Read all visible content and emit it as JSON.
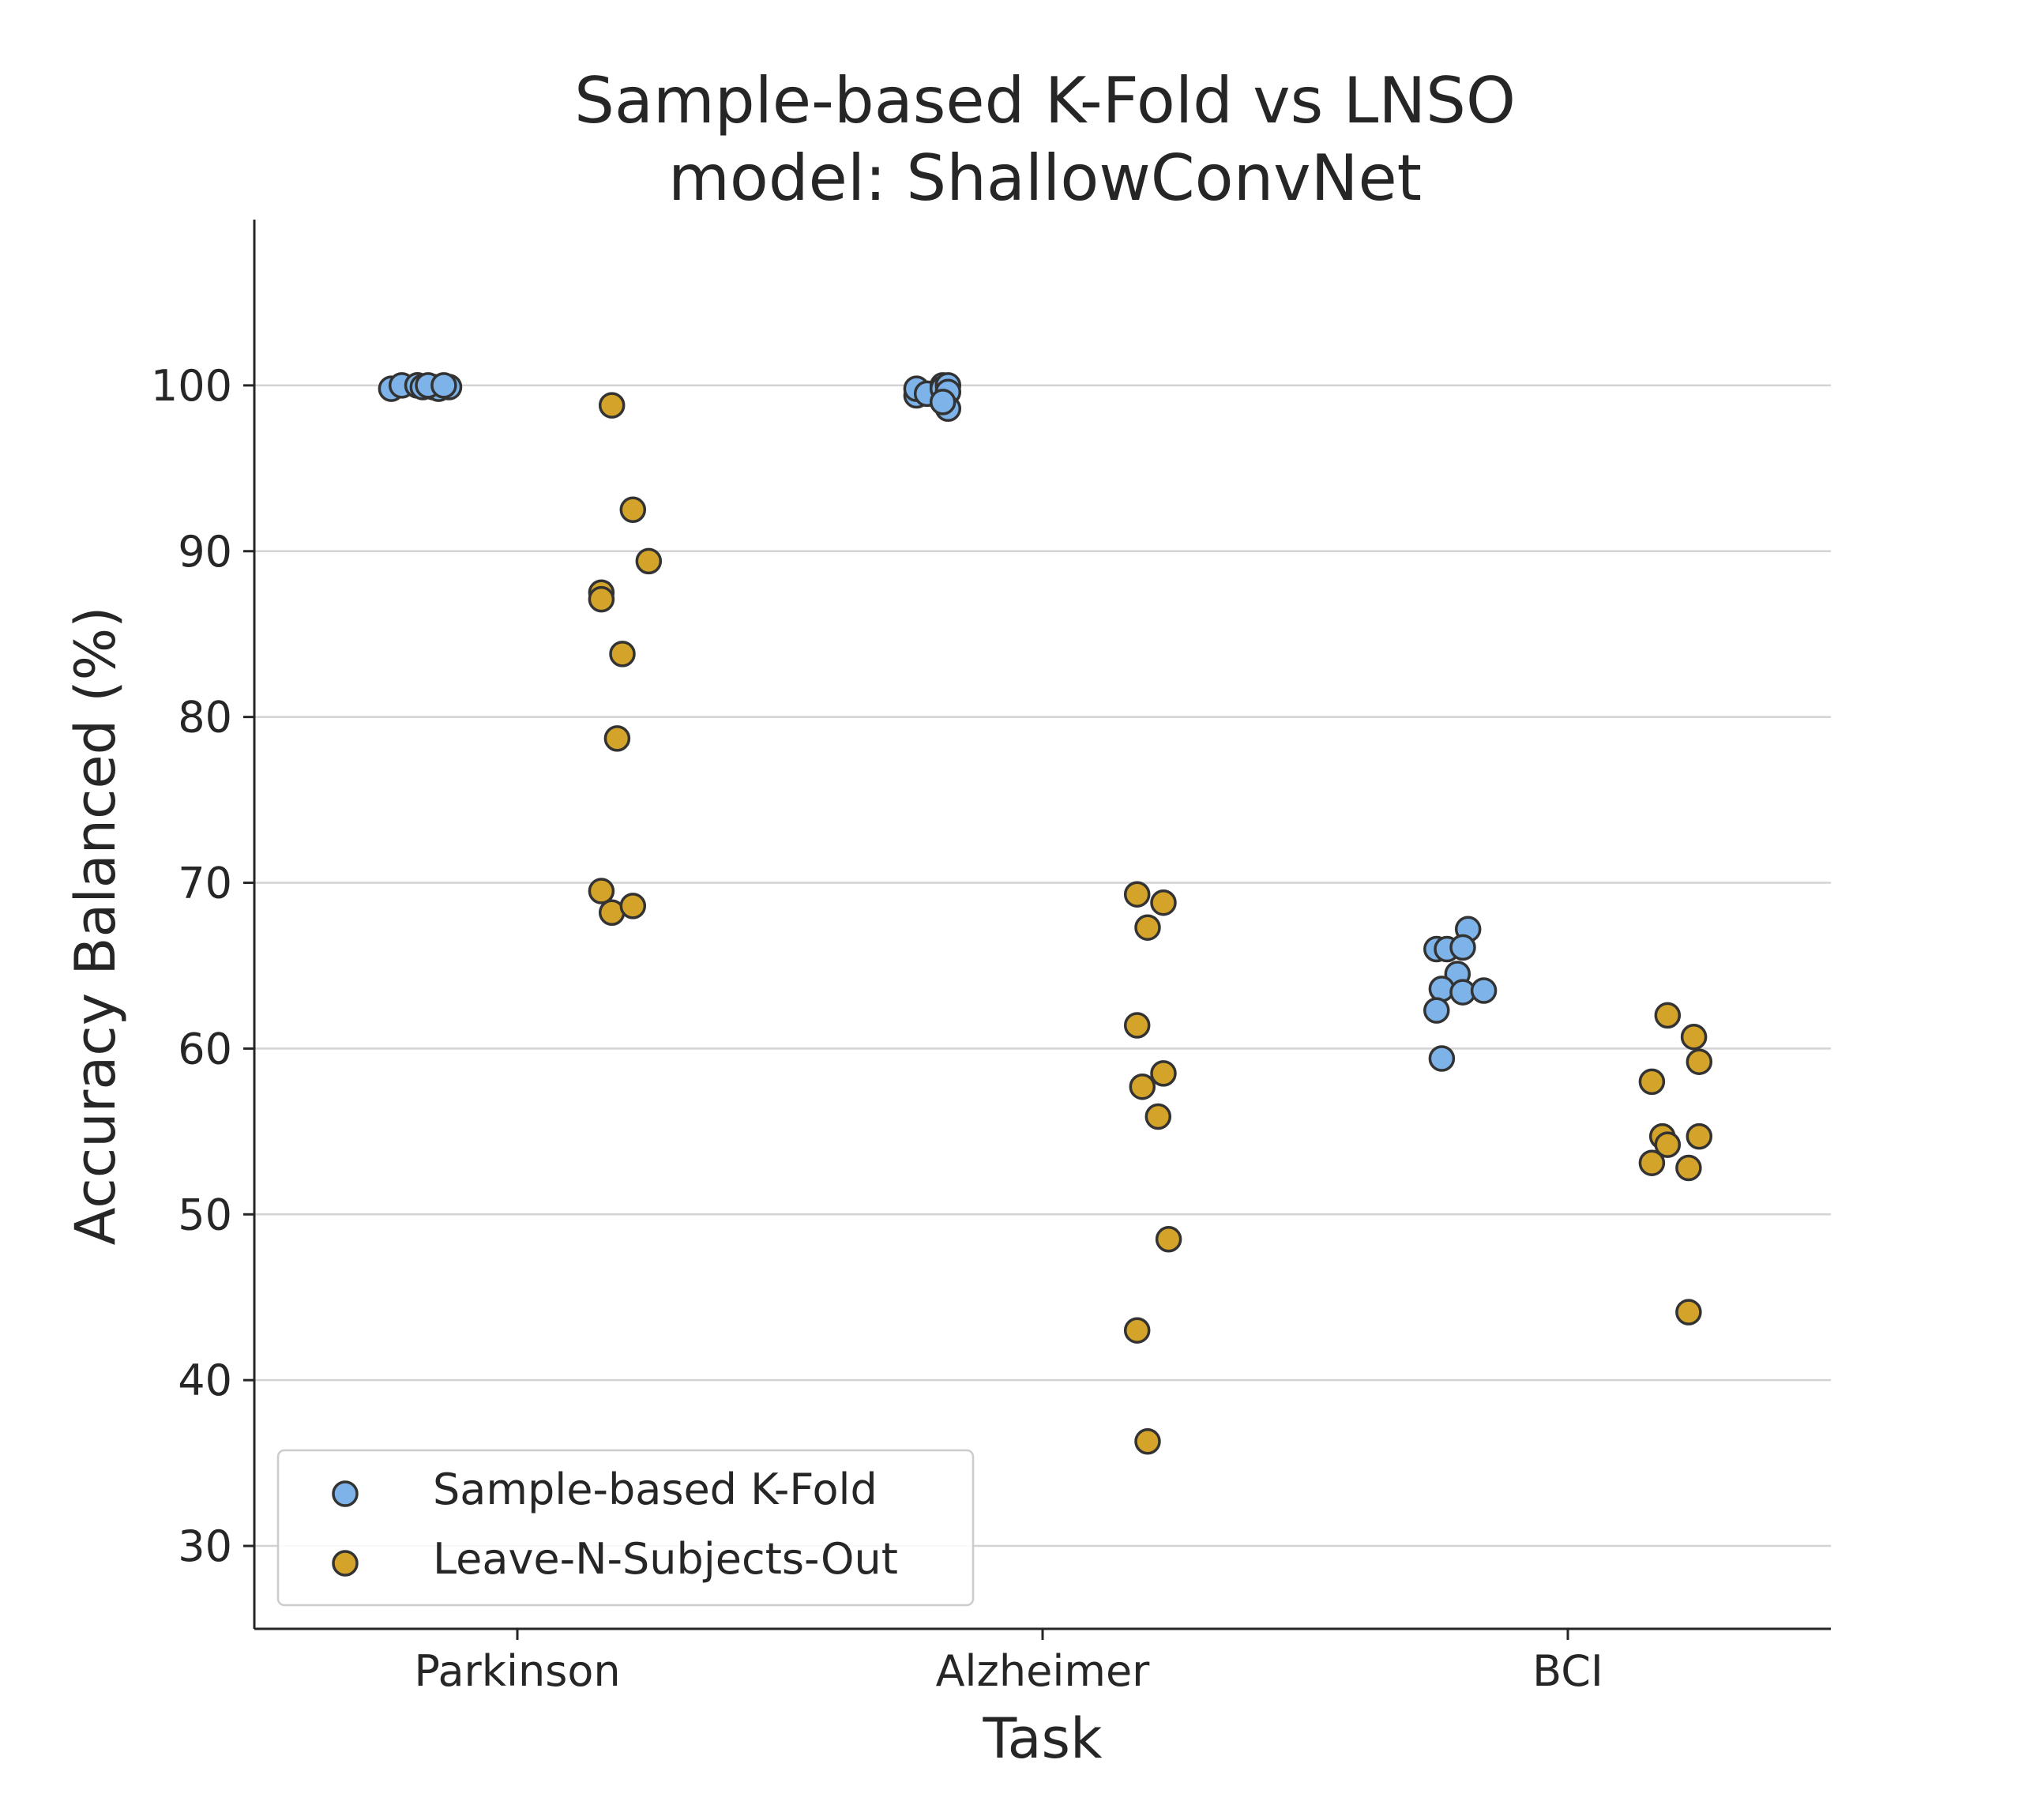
{
  "chart_data": {
    "type": "scatter",
    "title": "Sample-based K-Fold vs LNSO",
    "subtitle": "model: ShallowConvNet",
    "xlabel": "Task",
    "ylabel": "Accuracy Balanced (%)",
    "categories": [
      "Parkinson",
      "Alzheimer",
      "BCI"
    ],
    "ylim": [
      25,
      110
    ],
    "yticks": [
      30,
      40,
      50,
      60,
      70,
      80,
      90,
      100
    ],
    "grid": "horizontal",
    "legend_position": "lower-left",
    "series": [
      {
        "name": "Sample-based K-Fold",
        "color": "#7db3e8",
        "points": [
          {
            "category": "Parkinson",
            "jitter": -0.24,
            "y": 99.8
          },
          {
            "category": "Parkinson",
            "jitter": -0.22,
            "y": 100.0
          },
          {
            "category": "Parkinson",
            "jitter": -0.19,
            "y": 100.0
          },
          {
            "category": "Parkinson",
            "jitter": -0.16,
            "y": 99.9
          },
          {
            "category": "Parkinson",
            "jitter": -0.19,
            "y": 100.0
          },
          {
            "category": "Parkinson",
            "jitter": -0.18,
            "y": 99.9
          },
          {
            "category": "Parkinson",
            "jitter": -0.15,
            "y": 99.8
          },
          {
            "category": "Parkinson",
            "jitter": -0.17,
            "y": 100.0
          },
          {
            "category": "Parkinson",
            "jitter": -0.13,
            "y": 99.9
          },
          {
            "category": "Parkinson",
            "jitter": -0.14,
            "y": 100.0
          },
          {
            "category": "Alzheimer",
            "jitter": -0.24,
            "y": 99.4
          },
          {
            "category": "Alzheimer",
            "jitter": -0.24,
            "y": 99.8
          },
          {
            "category": "Alzheimer",
            "jitter": -0.22,
            "y": 99.5
          },
          {
            "category": "Alzheimer",
            "jitter": -0.19,
            "y": 100.0
          },
          {
            "category": "Alzheimer",
            "jitter": -0.19,
            "y": 99.8
          },
          {
            "category": "Alzheimer",
            "jitter": -0.18,
            "y": 100.0
          },
          {
            "category": "Alzheimer",
            "jitter": -0.18,
            "y": 99.6
          },
          {
            "category": "Alzheimer",
            "jitter": -0.18,
            "y": 98.6
          },
          {
            "category": "Alzheimer",
            "jitter": -0.19,
            "y": 99.0
          },
          {
            "category": "BCI",
            "jitter": -0.25,
            "y": 66.0
          },
          {
            "category": "BCI",
            "jitter": -0.23,
            "y": 66.0
          },
          {
            "category": "BCI",
            "jitter": -0.19,
            "y": 67.2
          },
          {
            "category": "BCI",
            "jitter": -0.2,
            "y": 66.1
          },
          {
            "category": "BCI",
            "jitter": -0.21,
            "y": 64.5
          },
          {
            "category": "BCI",
            "jitter": -0.24,
            "y": 63.6
          },
          {
            "category": "BCI",
            "jitter": -0.2,
            "y": 63.4
          },
          {
            "category": "BCI",
            "jitter": -0.16,
            "y": 63.5
          },
          {
            "category": "BCI",
            "jitter": -0.25,
            "y": 62.3
          },
          {
            "category": "BCI",
            "jitter": -0.24,
            "y": 59.4
          }
        ]
      },
      {
        "name": "Leave-N-Subjects-Out",
        "color": "#d4a32a",
        "points": [
          {
            "category": "Parkinson",
            "jitter": 0.18,
            "y": 98.8
          },
          {
            "category": "Parkinson",
            "jitter": 0.22,
            "y": 92.5
          },
          {
            "category": "Parkinson",
            "jitter": 0.25,
            "y": 89.4
          },
          {
            "category": "Parkinson",
            "jitter": 0.16,
            "y": 87.5
          },
          {
            "category": "Parkinson",
            "jitter": 0.16,
            "y": 87.1
          },
          {
            "category": "Parkinson",
            "jitter": 0.2,
            "y": 83.8
          },
          {
            "category": "Parkinson",
            "jitter": 0.19,
            "y": 78.7
          },
          {
            "category": "Parkinson",
            "jitter": 0.16,
            "y": 69.5
          },
          {
            "category": "Parkinson",
            "jitter": 0.18,
            "y": 68.2
          },
          {
            "category": "Parkinson",
            "jitter": 0.22,
            "y": 68.6
          },
          {
            "category": "Alzheimer",
            "jitter": 0.18,
            "y": 69.3
          },
          {
            "category": "Alzheimer",
            "jitter": 0.23,
            "y": 68.8
          },
          {
            "category": "Alzheimer",
            "jitter": 0.2,
            "y": 67.3
          },
          {
            "category": "Alzheimer",
            "jitter": 0.18,
            "y": 61.4
          },
          {
            "category": "Alzheimer",
            "jitter": 0.23,
            "y": 58.5
          },
          {
            "category": "Alzheimer",
            "jitter": 0.19,
            "y": 57.7
          },
          {
            "category": "Alzheimer",
            "jitter": 0.22,
            "y": 55.9
          },
          {
            "category": "Alzheimer",
            "jitter": 0.24,
            "y": 48.5
          },
          {
            "category": "Alzheimer",
            "jitter": 0.18,
            "y": 43.0
          },
          {
            "category": "Alzheimer",
            "jitter": 0.2,
            "y": 36.3
          },
          {
            "category": "BCI",
            "jitter": 0.19,
            "y": 62.0
          },
          {
            "category": "BCI",
            "jitter": 0.24,
            "y": 60.7
          },
          {
            "category": "BCI",
            "jitter": 0.25,
            "y": 59.2
          },
          {
            "category": "BCI",
            "jitter": 0.16,
            "y": 58.0
          },
          {
            "category": "BCI",
            "jitter": 0.18,
            "y": 54.7
          },
          {
            "category": "BCI",
            "jitter": 0.19,
            "y": 54.2
          },
          {
            "category": "BCI",
            "jitter": 0.25,
            "y": 54.7
          },
          {
            "category": "BCI",
            "jitter": 0.16,
            "y": 53.1
          },
          {
            "category": "BCI",
            "jitter": 0.23,
            "y": 52.8
          },
          {
            "category": "BCI",
            "jitter": 0.23,
            "y": 44.1
          }
        ]
      }
    ]
  }
}
